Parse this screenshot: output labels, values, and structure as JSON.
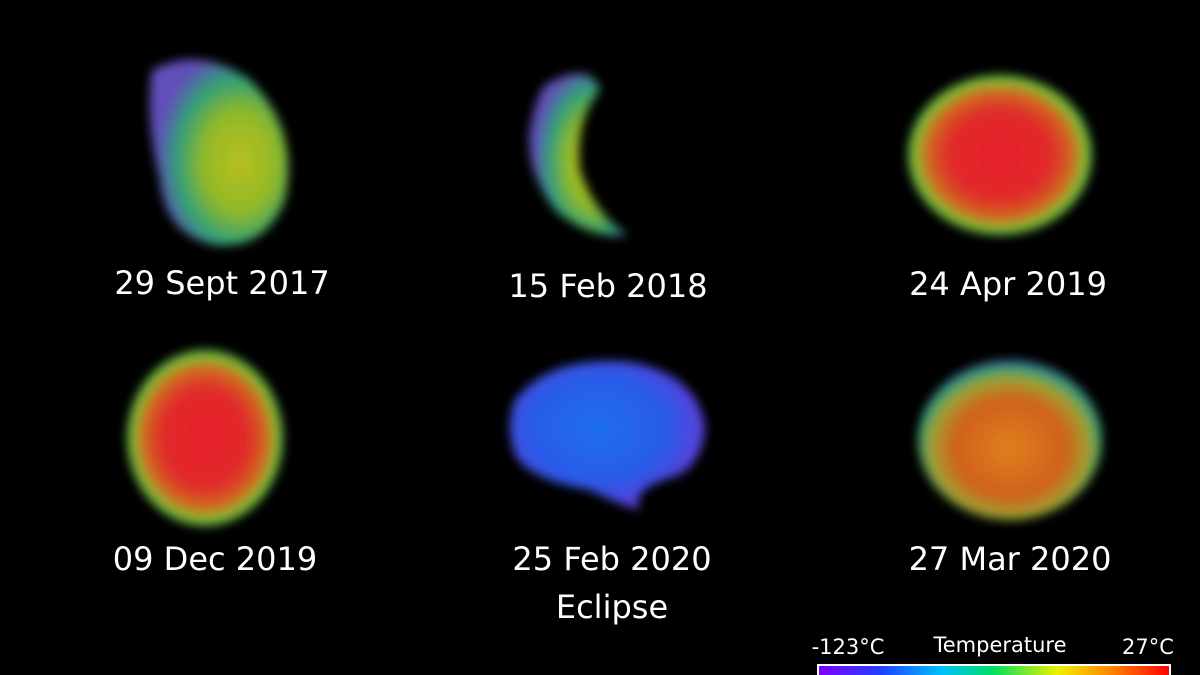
{
  "panels": [
    {
      "date": "29 Sept 2017"
    },
    {
      "date": "15 Feb 2018"
    },
    {
      "date": "24 Apr 2019"
    },
    {
      "date": "09 Dec 2019"
    },
    {
      "date": "25 Feb 2020",
      "note": "Eclipse"
    },
    {
      "date": "27 Mar 2020"
    }
  ],
  "legend": {
    "title": "Temperature",
    "min_label": "-123°C",
    "max_label": "27°C"
  }
}
